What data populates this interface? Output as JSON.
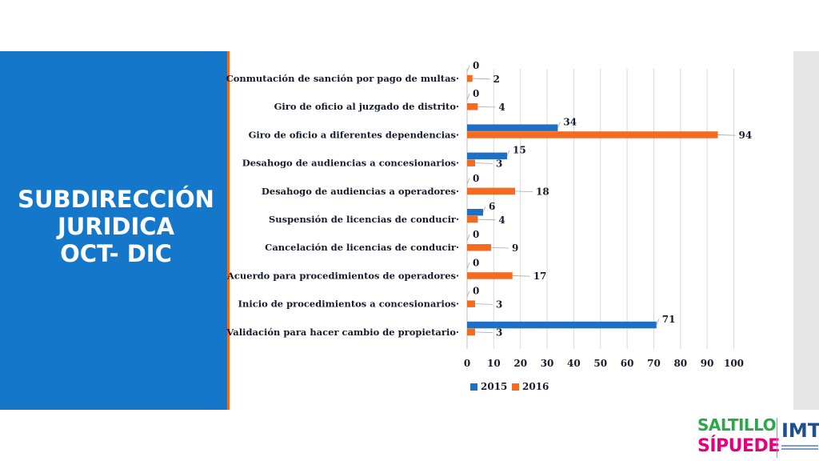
{
  "panel": {
    "line1": "SUBDIRECCIÓN",
    "line2": "JURIDICA",
    "line3": "OCT- DIC"
  },
  "logo": {
    "saltillo": "SALTILLO",
    "sipuede": "SÍPUEDE",
    "imt": "IMT"
  },
  "chart_data": {
    "type": "bar",
    "orientation": "horizontal",
    "categories": [
      "Conmutación de sanción por pago de multas",
      "Giro de oficio al juzgado de distrito",
      "Giro de oficio a diferentes dependencias",
      "Desahogo de audiencias a concesionarios",
      "Desahogo de audiencias a operadores",
      "Suspensión de licencias de conducir",
      "Cancelación de licencias de conducir",
      "Acuerdo para procedimientos de operadores",
      "Inicio de procedimientos a concesionarios",
      "Validación para hacer cambio de propietario"
    ],
    "series": [
      {
        "name": "2015",
        "color": "#1f6fc5",
        "values": [
          0,
          0,
          34,
          15,
          0,
          6,
          0,
          0,
          0,
          71
        ]
      },
      {
        "name": "2016",
        "color": "#f26b21",
        "values": [
          2,
          4,
          94,
          3,
          18,
          4,
          9,
          17,
          3,
          3
        ]
      }
    ],
    "xticks": [
      0,
      10,
      20,
      30,
      40,
      50,
      60,
      70,
      80,
      90,
      100
    ],
    "xlim": [
      0,
      100
    ],
    "grid": true,
    "legend": "bottom"
  }
}
